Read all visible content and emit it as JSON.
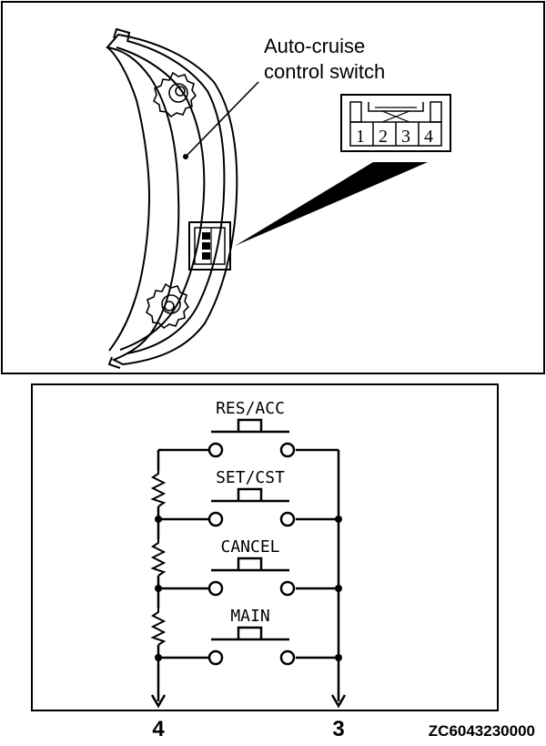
{
  "callout": {
    "label_line1": "Auto-cruise",
    "label_line2": "control switch"
  },
  "connector": {
    "pins": [
      "1",
      "2",
      "3",
      "4"
    ]
  },
  "schematic": {
    "switches": [
      "RES/ACC",
      "SET/CST",
      "CANCEL",
      "MAIN"
    ],
    "terminal_left": "4",
    "terminal_right": "3"
  },
  "figure_code": "ZC6043230000",
  "colors": {
    "ink": "#000000",
    "paper": "#ffffff"
  }
}
